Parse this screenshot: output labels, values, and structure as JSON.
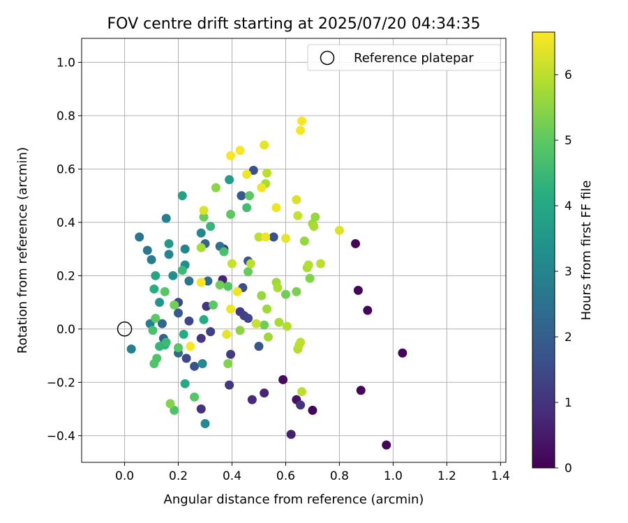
{
  "chart_data": {
    "type": "scatter",
    "title": "FOV centre drift starting at 2025/07/20 04:34:35",
    "xlabel": "Angular distance from reference (arcmin)",
    "ylabel": "Rotation from reference (arcmin)",
    "xlim": [
      -0.16,
      1.42
    ],
    "ylim": [
      -0.5,
      1.09
    ],
    "x_ticks": [
      0.0,
      0.2,
      0.4,
      0.6,
      0.8,
      1.0,
      1.2,
      1.4
    ],
    "x_tick_labels": [
      "0.0",
      "0.2",
      "0.4",
      "0.6",
      "0.8",
      "1.0",
      "1.2",
      "1.4"
    ],
    "y_ticks": [
      -0.4,
      -0.2,
      0.0,
      0.2,
      0.4,
      0.6,
      0.8,
      1.0
    ],
    "y_tick_labels": [
      "−0.4",
      "−0.2",
      "0.0",
      "0.2",
      "0.4",
      "0.6",
      "0.8",
      "1.0"
    ],
    "grid": true,
    "legend": {
      "position": "top-right",
      "entries": [
        "Reference platepar"
      ]
    },
    "reference_point": {
      "x": 0.0,
      "y": 0.0
    },
    "colorbar": {
      "label": "Hours from first FF file",
      "colormap": "viridis",
      "range": [
        0,
        6.65
      ],
      "ticks": [
        0,
        1,
        2,
        3,
        4,
        5,
        6
      ],
      "tick_labels": [
        "0",
        "1",
        "2",
        "3",
        "4",
        "5",
        "6"
      ]
    },
    "points": [
      {
        "x": 0.86,
        "y": 0.32,
        "c": 0.1
      },
      {
        "x": 0.87,
        "y": 0.145,
        "c": 0.1
      },
      {
        "x": 0.905,
        "y": 0.07,
        "c": 0.1
      },
      {
        "x": 1.035,
        "y": -0.09,
        "c": 0.1
      },
      {
        "x": 0.88,
        "y": -0.23,
        "c": 0.1
      },
      {
        "x": 0.975,
        "y": -0.435,
        "c": 0.1
      },
      {
        "x": 0.7,
        "y": -0.305,
        "c": 0.1
      },
      {
        "x": 0.59,
        "y": -0.19,
        "c": 0.2
      },
      {
        "x": 0.64,
        "y": -0.265,
        "c": 0.3
      },
      {
        "x": 0.62,
        "y": -0.395,
        "c": 0.6
      },
      {
        "x": 0.52,
        "y": -0.24,
        "c": 0.7
      },
      {
        "x": 0.475,
        "y": -0.265,
        "c": 0.8
      },
      {
        "x": 0.655,
        "y": -0.285,
        "c": 1.0
      },
      {
        "x": 0.365,
        "y": 0.185,
        "c": 0.7
      },
      {
        "x": 0.37,
        "y": 0.3,
        "c": 1.0
      },
      {
        "x": 0.305,
        "y": 0.085,
        "c": 1.1
      },
      {
        "x": 0.285,
        "y": -0.3,
        "c": 1.0
      },
      {
        "x": 0.39,
        "y": -0.21,
        "c": 1.1
      },
      {
        "x": 0.395,
        "y": -0.095,
        "c": 1.2
      },
      {
        "x": 0.43,
        "y": 0.065,
        "c": 1.2
      },
      {
        "x": 0.445,
        "y": 0.05,
        "c": 1.3
      },
      {
        "x": 0.46,
        "y": 0.04,
        "c": 1.4
      },
      {
        "x": 0.285,
        "y": -0.035,
        "c": 1.1
      },
      {
        "x": 0.32,
        "y": -0.01,
        "c": 1.3
      },
      {
        "x": 0.24,
        "y": 0.03,
        "c": 1.4
      },
      {
        "x": 0.2,
        "y": 0.1,
        "c": 1.5
      },
      {
        "x": 0.23,
        "y": -0.11,
        "c": 1.5
      },
      {
        "x": 0.26,
        "y": -0.14,
        "c": 1.7
      },
      {
        "x": 0.44,
        "y": 0.155,
        "c": 1.6
      },
      {
        "x": 0.5,
        "y": -0.065,
        "c": 1.8
      },
      {
        "x": 0.48,
        "y": 0.595,
        "c": 1.7
      },
      {
        "x": 0.435,
        "y": 0.5,
        "c": 1.9
      },
      {
        "x": 0.46,
        "y": 0.255,
        "c": 1.8
      },
      {
        "x": 0.555,
        "y": 0.345,
        "c": 1.7
      },
      {
        "x": 0.2,
        "y": 0.06,
        "c": 1.9
      },
      {
        "x": 0.145,
        "y": -0.035,
        "c": 2.0
      },
      {
        "x": 0.14,
        "y": 0.02,
        "c": 2.2
      },
      {
        "x": 0.2,
        "y": -0.09,
        "c": 2.3
      },
      {
        "x": 0.3,
        "y": 0.32,
        "c": 2.2
      },
      {
        "x": 0.355,
        "y": 0.31,
        "c": 2.5
      },
      {
        "x": 0.31,
        "y": 0.18,
        "c": 2.4
      },
      {
        "x": 0.24,
        "y": 0.18,
        "c": 2.6
      },
      {
        "x": 0.1,
        "y": 0.26,
        "c": 2.8
      },
      {
        "x": 0.085,
        "y": 0.295,
        "c": 2.7
      },
      {
        "x": 0.055,
        "y": 0.345,
        "c": 2.6
      },
      {
        "x": 0.025,
        "y": -0.075,
        "c": 2.9
      },
      {
        "x": 0.095,
        "y": 0.02,
        "c": 2.9
      },
      {
        "x": 0.155,
        "y": 0.415,
        "c": 2.9
      },
      {
        "x": 0.165,
        "y": 0.28,
        "c": 3.0
      },
      {
        "x": 0.225,
        "y": 0.3,
        "c": 3.0
      },
      {
        "x": 0.285,
        "y": 0.36,
        "c": 3.1
      },
      {
        "x": 0.3,
        "y": -0.355,
        "c": 3.1
      },
      {
        "x": 0.29,
        "y": -0.13,
        "c": 3.2
      },
      {
        "x": 0.18,
        "y": 0.2,
        "c": 3.3
      },
      {
        "x": 0.225,
        "y": 0.24,
        "c": 3.3
      },
      {
        "x": 0.13,
        "y": 0.1,
        "c": 3.5
      },
      {
        "x": 0.165,
        "y": 0.32,
        "c": 3.6
      },
      {
        "x": 0.39,
        "y": 0.56,
        "c": 3.7
      },
      {
        "x": 0.215,
        "y": 0.5,
        "c": 3.8
      },
      {
        "x": 0.115,
        "y": 0.2,
        "c": 3.9
      },
      {
        "x": 0.225,
        "y": -0.205,
        "c": 4.0
      },
      {
        "x": 0.295,
        "y": 0.035,
        "c": 4.1
      },
      {
        "x": 0.22,
        "y": -0.02,
        "c": 4.1
      },
      {
        "x": 0.11,
        "y": 0.15,
        "c": 4.2
      },
      {
        "x": 0.15,
        "y": -0.06,
        "c": 4.3
      },
      {
        "x": 0.13,
        "y": -0.065,
        "c": 4.4
      },
      {
        "x": 0.32,
        "y": 0.385,
        "c": 4.4
      },
      {
        "x": 0.155,
        "y": -0.05,
        "c": 4.5
      },
      {
        "x": 0.215,
        "y": 0.22,
        "c": 4.5
      },
      {
        "x": 0.455,
        "y": 0.455,
        "c": 4.6
      },
      {
        "x": 0.105,
        "y": -0.005,
        "c": 4.7
      },
      {
        "x": 0.12,
        "y": -0.11,
        "c": 4.8
      },
      {
        "x": 0.11,
        "y": -0.13,
        "c": 4.8
      },
      {
        "x": 0.185,
        "y": -0.305,
        "c": 4.8
      },
      {
        "x": 0.26,
        "y": -0.255,
        "c": 4.9
      },
      {
        "x": 0.2,
        "y": -0.07,
        "c": 4.9
      },
      {
        "x": 0.15,
        "y": 0.14,
        "c": 4.9
      },
      {
        "x": 0.115,
        "y": 0.04,
        "c": 5.0
      },
      {
        "x": 0.385,
        "y": 0.16,
        "c": 4.9
      },
      {
        "x": 0.37,
        "y": 0.29,
        "c": 4.7
      },
      {
        "x": 0.33,
        "y": 0.09,
        "c": 5.0
      },
      {
        "x": 0.46,
        "y": 0.215,
        "c": 5.1
      },
      {
        "x": 0.465,
        "y": 0.5,
        "c": 5.0
      },
      {
        "x": 0.395,
        "y": 0.43,
        "c": 5.0
      },
      {
        "x": 0.295,
        "y": 0.42,
        "c": 5.1
      },
      {
        "x": 0.52,
        "y": 0.015,
        "c": 5.2
      },
      {
        "x": 0.6,
        "y": 0.13,
        "c": 5.2
      },
      {
        "x": 0.64,
        "y": 0.14,
        "c": 5.3
      },
      {
        "x": 0.69,
        "y": 0.19,
        "c": 5.4
      },
      {
        "x": 0.355,
        "y": 0.165,
        "c": 5.2
      },
      {
        "x": 0.185,
        "y": 0.09,
        "c": 5.2
      },
      {
        "x": 0.17,
        "y": -0.28,
        "c": 5.4
      },
      {
        "x": 0.385,
        "y": -0.13,
        "c": 5.4
      },
      {
        "x": 0.43,
        "y": -0.005,
        "c": 5.5
      },
      {
        "x": 0.51,
        "y": 0.125,
        "c": 5.6
      },
      {
        "x": 0.53,
        "y": 0.075,
        "c": 5.7
      },
      {
        "x": 0.535,
        "y": -0.03,
        "c": 5.7
      },
      {
        "x": 0.565,
        "y": 0.175,
        "c": 5.7
      },
      {
        "x": 0.57,
        "y": 0.155,
        "c": 5.8
      },
      {
        "x": 0.575,
        "y": 0.025,
        "c": 5.8
      },
      {
        "x": 0.605,
        "y": 0.01,
        "c": 5.9
      },
      {
        "x": 0.645,
        "y": -0.075,
        "c": 5.9
      },
      {
        "x": 0.65,
        "y": -0.06,
        "c": 6.0
      },
      {
        "x": 0.655,
        "y": -0.05,
        "c": 6.0
      },
      {
        "x": 0.66,
        "y": -0.235,
        "c": 6.0
      },
      {
        "x": 0.67,
        "y": 0.33,
        "c": 5.6
      },
      {
        "x": 0.68,
        "y": 0.23,
        "c": 5.8
      },
      {
        "x": 0.685,
        "y": 0.24,
        "c": 5.9
      },
      {
        "x": 0.7,
        "y": 0.395,
        "c": 5.7
      },
      {
        "x": 0.705,
        "y": 0.385,
        "c": 5.8
      },
      {
        "x": 0.71,
        "y": 0.42,
        "c": 5.6
      },
      {
        "x": 0.73,
        "y": 0.245,
        "c": 6.0
      },
      {
        "x": 0.34,
        "y": 0.53,
        "c": 5.5
      },
      {
        "x": 0.525,
        "y": 0.545,
        "c": 5.8
      },
      {
        "x": 0.53,
        "y": 0.585,
        "c": 6.0
      },
      {
        "x": 0.5,
        "y": 0.345,
        "c": 6.0
      },
      {
        "x": 0.47,
        "y": 0.245,
        "c": 6.0
      },
      {
        "x": 0.4,
        "y": 0.245,
        "c": 6.1
      },
      {
        "x": 0.645,
        "y": 0.425,
        "c": 6.1
      },
      {
        "x": 0.49,
        "y": 0.02,
        "c": 6.1
      },
      {
        "x": 0.285,
        "y": 0.305,
        "c": 5.8
      },
      {
        "x": 0.51,
        "y": 0.53,
        "c": 6.5
      },
      {
        "x": 0.455,
        "y": 0.58,
        "c": 6.5
      },
      {
        "x": 0.395,
        "y": 0.075,
        "c": 6.5
      },
      {
        "x": 0.38,
        "y": -0.02,
        "c": 6.4
      },
      {
        "x": 0.42,
        "y": 0.14,
        "c": 6.5
      },
      {
        "x": 0.395,
        "y": 0.65,
        "c": 6.6
      },
      {
        "x": 0.43,
        "y": 0.67,
        "c": 6.6
      },
      {
        "x": 0.52,
        "y": 0.69,
        "c": 6.4
      },
      {
        "x": 0.655,
        "y": 0.745,
        "c": 6.6
      },
      {
        "x": 0.66,
        "y": 0.78,
        "c": 6.6
      },
      {
        "x": 0.565,
        "y": 0.455,
        "c": 6.5
      },
      {
        "x": 0.525,
        "y": 0.345,
        "c": 6.5
      },
      {
        "x": 0.6,
        "y": 0.34,
        "c": 6.4
      },
      {
        "x": 0.64,
        "y": 0.485,
        "c": 6.3
      },
      {
        "x": 0.8,
        "y": 0.37,
        "c": 6.3
      },
      {
        "x": 0.295,
        "y": 0.445,
        "c": 6.3
      },
      {
        "x": 0.285,
        "y": 0.175,
        "c": 6.6
      },
      {
        "x": 0.245,
        "y": -0.065,
        "c": 6.6
      }
    ]
  }
}
